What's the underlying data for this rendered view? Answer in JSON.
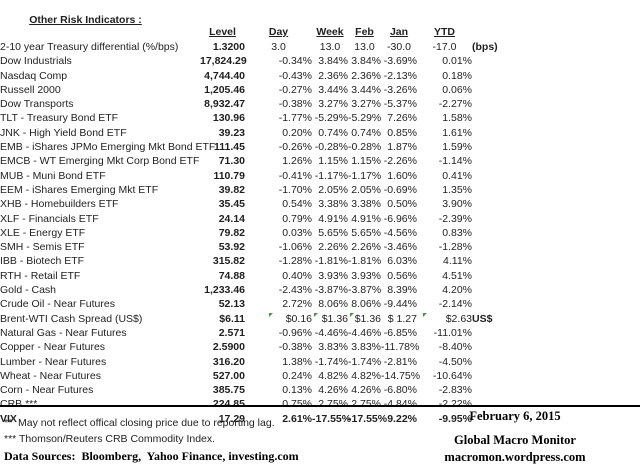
{
  "table": {
    "title": "Other Risk Indicators :",
    "columns": [
      "Level",
      "Day",
      "Week",
      "Feb",
      "Jan",
      "YTD"
    ],
    "rows": [
      {
        "label": "2-10 year Treasury differential (%/bps)",
        "level": "1.3200",
        "day": "3.0",
        "week": "13.0",
        "feb": "13.0",
        "jan": "-30.0",
        "ytd": "-17.0",
        "suffix": "(bps)",
        "center_values": true
      },
      {
        "label": "Dow Industrials",
        "level": "17,824.29",
        "day": "-0.34%",
        "week": "3.84%",
        "feb": "3.84%",
        "jan": "-3.69%",
        "ytd": "0.01%"
      },
      {
        "label": "Nasdaq Comp",
        "level": "4,744.40",
        "day": "-0.43%",
        "week": "2.36%",
        "feb": "2.36%",
        "jan": "-2.13%",
        "ytd": "0.18%"
      },
      {
        "label": "Russell 2000",
        "level": "1,205.46",
        "day": "-0.27%",
        "week": "3.44%",
        "feb": "3.44%",
        "jan": "-3.26%",
        "ytd": "0.06%"
      },
      {
        "label": "Dow Transports",
        "level": "8,932.47",
        "day": "-0.38%",
        "week": "3.27%",
        "feb": "3.27%",
        "jan": "-5.37%",
        "ytd": "-2.27%"
      },
      {
        "label": "TLT - Treasury Bond ETF",
        "level": "130.96",
        "day": "-1.77%",
        "week": "-5.29%",
        "feb": "-5.29%",
        "jan": "7.26%",
        "ytd": "1.58%"
      },
      {
        "label": "JNK - High Yield Bond ETF",
        "level": "39.23",
        "day": "0.20%",
        "week": "0.74%",
        "feb": "0.74%",
        "jan": "0.85%",
        "ytd": "1.61%"
      },
      {
        "label": "EMB - iShares JPMo Emerging Mkt Bond ETF",
        "level": "111.45",
        "day": "-0.26%",
        "week": "-0.28%",
        "feb": "-0.28%",
        "jan": "1.87%",
        "ytd": "1.59%"
      },
      {
        "label": "EMCB - WT Emerging Mkt Corp Bond ETF",
        "level": "71.30",
        "day": "1.26%",
        "week": "1.15%",
        "feb": "1.15%",
        "jan": "-2.26%",
        "ytd": "-1.14%"
      },
      {
        "label": "MUB - Muni Bond ETF",
        "level": "110.79",
        "day": "-0.41%",
        "week": "-1.17%",
        "feb": "-1.17%",
        "jan": "1.60%",
        "ytd": "0.41%"
      },
      {
        "label": "EEM - iShares Emerging Mkt ETF",
        "level": "39.82",
        "day": "-1.70%",
        "week": "2.05%",
        "feb": "2.05%",
        "jan": "-0.69%",
        "ytd": "1.35%"
      },
      {
        "label": "XHB - Homebuilders ETF",
        "level": "35.45",
        "day": "0.54%",
        "week": "3.38%",
        "feb": "3.38%",
        "jan": "0.50%",
        "ytd": "3.90%"
      },
      {
        "label": "XLF - Financials ETF",
        "level": "24.14",
        "day": "0.79%",
        "week": "4.91%",
        "feb": "4.91%",
        "jan": "-6.96%",
        "ytd": "-2.39%"
      },
      {
        "label": "XLE - Energy ETF",
        "level": "79.82",
        "day": "0.03%",
        "week": "5.65%",
        "feb": "5.65%",
        "jan": "-4.56%",
        "ytd": "0.83%"
      },
      {
        "label": "SMH - Semis ETF",
        "level": "53.92",
        "day": "-1.06%",
        "week": "2.26%",
        "feb": "2.26%",
        "jan": "-3.46%",
        "ytd": "-1.28%"
      },
      {
        "label": "IBB - Biotech ETF",
        "level": "315.82",
        "day": "-1.28%",
        "week": "-1.81%",
        "feb": "-1.81%",
        "jan": "6.03%",
        "ytd": "4.11%"
      },
      {
        "label": "RTH - Retail ETF",
        "level": "74.88",
        "day": "0.40%",
        "week": "3.93%",
        "feb": "3.93%",
        "jan": "0.56%",
        "ytd": "4.51%"
      },
      {
        "label": "Gold - Cash",
        "level": "1,233.46",
        "day": "-2.43%",
        "week": "-3.87%",
        "feb": "-3.87%",
        "jan": "8.39%",
        "ytd": "4.20%"
      },
      {
        "label": "Crude Oil - Near Futures",
        "level": "52.13",
        "day": "2.72%",
        "week": "8.06%",
        "feb": "8.06%",
        "jan": "-9.44%",
        "ytd": "-2.14%"
      },
      {
        "label": "Brent-WTI Cash Spread (US$)",
        "level": "$6.11",
        "day": "$0.16",
        "week": "$1.36",
        "feb": "$1.36",
        "jan": "$ 1.27",
        "ytd": "$2.63",
        "suffix": "US$",
        "flags": [
          "day",
          "week",
          "feb",
          "ytd"
        ]
      },
      {
        "label": "Natural Gas - Near Futures",
        "level": "2.571",
        "day": "-0.96%",
        "week": "-4.46%",
        "feb": "-4.46%",
        "jan": "-6.85%",
        "ytd": "-11.01%"
      },
      {
        "label": "Copper - Near Futures",
        "level": "2.5900",
        "day": "-0.38%",
        "week": "3.83%",
        "feb": "3.83%",
        "jan": "-11.78%",
        "ytd": "-8.40%"
      },
      {
        "label": "Lumber - Near Futures",
        "level": "316.20",
        "day": "1.38%",
        "week": "-1.74%",
        "feb": "-1.74%",
        "jan": "-2.81%",
        "ytd": "-4.50%"
      },
      {
        "label": "Wheat - Near Futures",
        "level": "527.00",
        "day": "0.24%",
        "week": "4.82%",
        "feb": "4.82%",
        "jan": "-14.75%",
        "ytd": "-10.64%"
      },
      {
        "label": "Corn - Near Futures",
        "level": "385.75",
        "day": "0.13%",
        "week": "4.26%",
        "feb": "4.26%",
        "jan": "-6.80%",
        "ytd": "-2.83%"
      },
      {
        "label": "CRB ***",
        "level": "224.85",
        "day": "0.75%",
        "week": "2.75%",
        "feb": "2.75%",
        "jan": "-4.84%",
        "ytd": "-2.22%"
      },
      {
        "label": "VIX",
        "level": "17.29",
        "day": "2.61%",
        "week": "-17.55%",
        "feb": "-17.55%",
        "jan": "9.22%",
        "ytd": "-9.95%",
        "bold": true
      }
    ]
  },
  "footnotes": {
    "note_double_asterisk": "**  May not reflect offical closing price due to reporting lag.",
    "note_triple_asterisk": "*** Thomson/Reuters CRB Commodity Index.",
    "data_sources": "Data Sources:  Bloomberg,  Yahoo Finance, investing.com"
  },
  "footer": {
    "date": "February 6, 2015",
    "publication": "Global Macro Monitor",
    "url": "macromon.wordpress.com"
  },
  "colors": {
    "error_flag_green": "#3f9b3f",
    "text": "#1f1f1f",
    "rule": "#000000"
  }
}
